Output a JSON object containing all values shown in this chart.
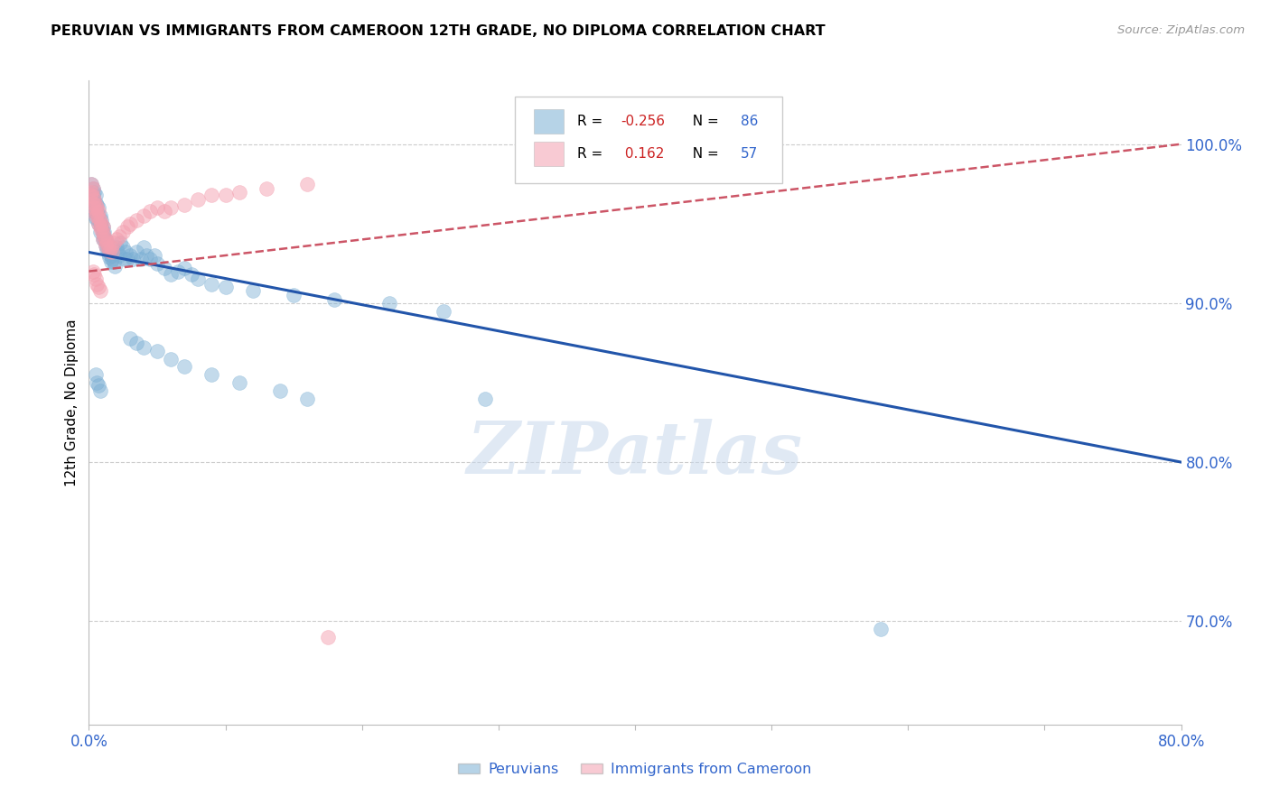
{
  "title": "PERUVIAN VS IMMIGRANTS FROM CAMEROON 12TH GRADE, NO DIPLOMA CORRELATION CHART",
  "source": "Source: ZipAtlas.com",
  "ylabel": "12th Grade, No Diploma",
  "ytick_labels": [
    "100.0%",
    "90.0%",
    "80.0%",
    "70.0%"
  ],
  "ytick_values": [
    1.0,
    0.9,
    0.8,
    0.7
  ],
  "xmin": 0.0,
  "xmax": 0.8,
  "ymin": 0.635,
  "ymax": 1.04,
  "legend_r_blue": "-0.256",
  "legend_n_blue": "86",
  "legend_r_pink": "0.162",
  "legend_n_pink": "57",
  "blue_color": "#7BAFD4",
  "pink_color": "#F4A0B0",
  "trend_blue_color": "#2255AA",
  "trend_pink_color": "#CC5566",
  "watermark": "ZIPatlas",
  "blue_trend_x": [
    0.0,
    0.8
  ],
  "blue_trend_y": [
    0.932,
    0.8
  ],
  "pink_trend_x": [
    0.0,
    0.8
  ],
  "pink_trend_y": [
    0.92,
    1.0
  ],
  "blue_x": [
    0.002,
    0.003,
    0.003,
    0.003,
    0.004,
    0.004,
    0.004,
    0.005,
    0.005,
    0.005,
    0.005,
    0.006,
    0.006,
    0.006,
    0.007,
    0.007,
    0.007,
    0.008,
    0.008,
    0.008,
    0.009,
    0.009,
    0.01,
    0.01,
    0.01,
    0.011,
    0.011,
    0.012,
    0.012,
    0.013,
    0.013,
    0.014,
    0.014,
    0.015,
    0.015,
    0.016,
    0.016,
    0.017,
    0.018,
    0.019,
    0.02,
    0.021,
    0.022,
    0.023,
    0.025,
    0.026,
    0.027,
    0.028,
    0.03,
    0.032,
    0.035,
    0.038,
    0.04,
    0.042,
    0.045,
    0.048,
    0.05,
    0.055,
    0.06,
    0.065,
    0.07,
    0.075,
    0.08,
    0.09,
    0.1,
    0.12,
    0.15,
    0.18,
    0.22,
    0.26,
    0.03,
    0.035,
    0.04,
    0.05,
    0.06,
    0.07,
    0.09,
    0.11,
    0.14,
    0.16,
    0.005,
    0.006,
    0.007,
    0.008,
    0.29,
    0.58
  ],
  "blue_y": [
    0.975,
    0.972,
    0.968,
    0.965,
    0.97,
    0.963,
    0.958,
    0.968,
    0.963,
    0.958,
    0.953,
    0.962,
    0.957,
    0.953,
    0.96,
    0.955,
    0.95,
    0.955,
    0.95,
    0.945,
    0.952,
    0.948,
    0.948,
    0.944,
    0.94,
    0.945,
    0.941,
    0.94,
    0.936,
    0.938,
    0.934,
    0.935,
    0.931,
    0.933,
    0.929,
    0.93,
    0.926,
    0.928,
    0.926,
    0.923,
    0.935,
    0.932,
    0.93,
    0.938,
    0.935,
    0.928,
    0.932,
    0.928,
    0.93,
    0.928,
    0.932,
    0.928,
    0.935,
    0.93,
    0.928,
    0.93,
    0.925,
    0.922,
    0.918,
    0.92,
    0.922,
    0.918,
    0.915,
    0.912,
    0.91,
    0.908,
    0.905,
    0.902,
    0.9,
    0.895,
    0.878,
    0.875,
    0.872,
    0.87,
    0.865,
    0.86,
    0.855,
    0.85,
    0.845,
    0.84,
    0.855,
    0.85,
    0.848,
    0.845,
    0.84,
    0.695
  ],
  "pink_x": [
    0.001,
    0.002,
    0.002,
    0.003,
    0.003,
    0.003,
    0.004,
    0.004,
    0.005,
    0.005,
    0.005,
    0.006,
    0.006,
    0.007,
    0.007,
    0.007,
    0.008,
    0.008,
    0.009,
    0.009,
    0.01,
    0.01,
    0.01,
    0.011,
    0.012,
    0.012,
    0.013,
    0.014,
    0.015,
    0.016,
    0.017,
    0.018,
    0.02,
    0.022,
    0.025,
    0.028,
    0.03,
    0.035,
    0.04,
    0.045,
    0.05,
    0.055,
    0.06,
    0.07,
    0.08,
    0.09,
    0.1,
    0.11,
    0.13,
    0.16,
    0.003,
    0.004,
    0.005,
    0.006,
    0.007,
    0.008,
    0.175
  ],
  "pink_y": [
    0.968,
    0.975,
    0.97,
    0.972,
    0.967,
    0.963,
    0.965,
    0.96,
    0.962,
    0.958,
    0.955,
    0.96,
    0.956,
    0.958,
    0.954,
    0.95,
    0.952,
    0.948,
    0.95,
    0.946,
    0.948,
    0.944,
    0.94,
    0.942,
    0.94,
    0.936,
    0.938,
    0.935,
    0.933,
    0.935,
    0.932,
    0.938,
    0.94,
    0.942,
    0.945,
    0.948,
    0.95,
    0.952,
    0.955,
    0.958,
    0.96,
    0.958,
    0.96,
    0.962,
    0.965,
    0.968,
    0.968,
    0.97,
    0.972,
    0.975,
    0.92,
    0.918,
    0.915,
    0.912,
    0.91,
    0.908,
    0.69
  ]
}
